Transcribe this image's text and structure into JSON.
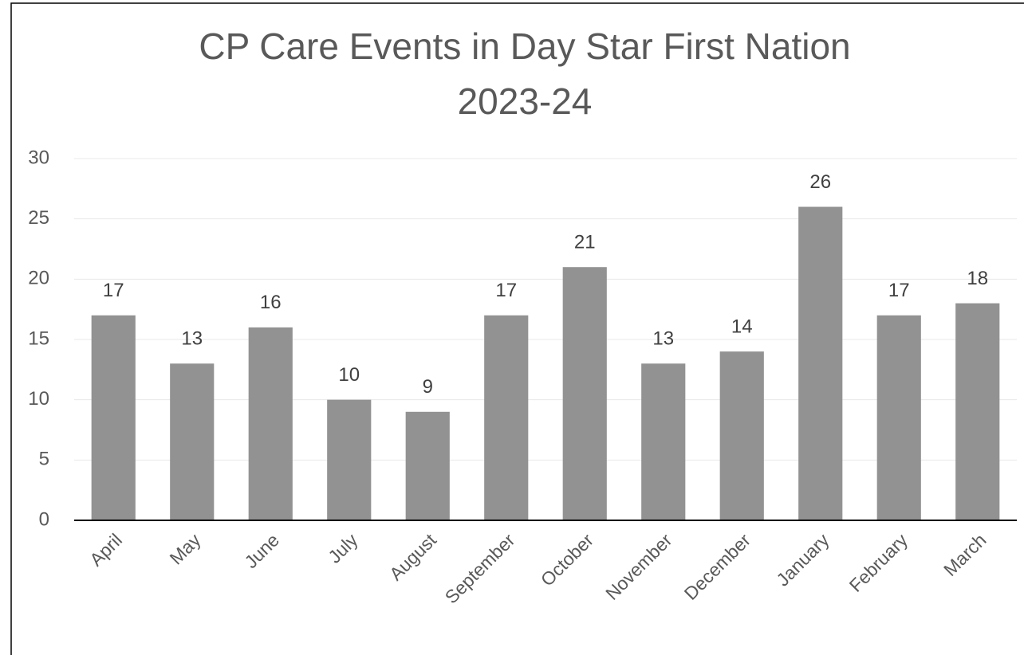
{
  "chart_data": {
    "type": "bar",
    "title": [
      "CP Care Events in Day Star First Nation",
      "2023-24"
    ],
    "categories": [
      "April",
      "May",
      "June",
      "July",
      "August",
      "September",
      "October",
      "November",
      "December",
      "January",
      "February",
      "March"
    ],
    "values": [
      17,
      13,
      16,
      10,
      9,
      17,
      21,
      13,
      14,
      26,
      17,
      18
    ],
    "color": "#929292",
    "ylim": [
      0,
      30
    ],
    "yticks": [
      0,
      5,
      10,
      15,
      20,
      25,
      30
    ],
    "grid": true
  }
}
